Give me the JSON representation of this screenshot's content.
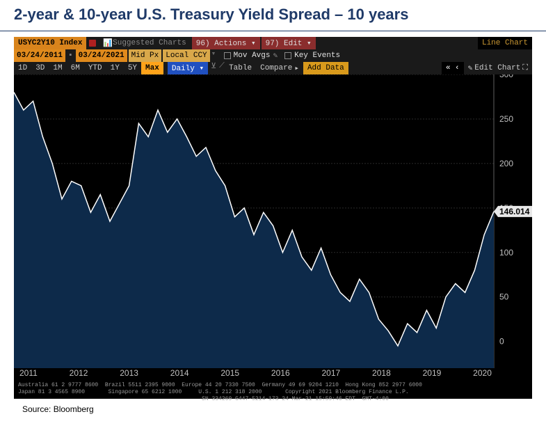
{
  "page": {
    "title": "2-year & 10-year U.S. Treasury Yield Spread – 10 years",
    "source": "Source: Bloomberg"
  },
  "toolbar": {
    "index_name": "USYC2Y10 Index",
    "suggested_charts": "Suggested Charts",
    "actions": "96) Actions ▾",
    "edit": "97) Edit ▾",
    "chart_type": "Line Chart"
  },
  "settings": {
    "date_from": "03/24/2011",
    "date_to": "03/24/2021",
    "mid_px": "Mid Px",
    "local_ccy": "Local CCY",
    "mov_avgs": "Mov Avgs",
    "key_events": "Key Events"
  },
  "ranges": {
    "items": [
      "1D",
      "3D",
      "1M",
      "6M",
      "YTD",
      "1Y",
      "5Y",
      "Max"
    ],
    "active": "Max",
    "frequency": "Daily ▾",
    "table": "Table",
    "compare": "Compare",
    "add_data": "Add Data",
    "edit_chart": "Edit Chart",
    "chevrons": "« ‹"
  },
  "chart": {
    "type": "area-line",
    "background_color": "#000000",
    "area_fill": "#0d2a4a",
    "line_color": "#ffffff",
    "line_width": 1.5,
    "grid_color": "#2a2a2a",
    "axis_text_color": "#c0c0c0",
    "ylim": [
      -30,
      300
    ],
    "ytick_step": 50,
    "yticks": [
      0,
      50,
      100,
      150,
      200,
      250,
      300
    ],
    "xticks": [
      "2011",
      "2012",
      "2013",
      "2014",
      "2015",
      "2016",
      "2017",
      "2018",
      "2019",
      "2020"
    ],
    "last_value": 146.014,
    "last_value_flag_bg": "#e8e8e8",
    "last_value_flag_fg": "#000000",
    "series": [
      [
        0.0,
        280
      ],
      [
        0.02,
        260
      ],
      [
        0.04,
        270
      ],
      [
        0.06,
        230
      ],
      [
        0.08,
        200
      ],
      [
        0.1,
        160
      ],
      [
        0.12,
        180
      ],
      [
        0.14,
        175
      ],
      [
        0.16,
        145
      ],
      [
        0.18,
        165
      ],
      [
        0.2,
        135
      ],
      [
        0.22,
        155
      ],
      [
        0.24,
        175
      ],
      [
        0.26,
        245
      ],
      [
        0.28,
        230
      ],
      [
        0.3,
        260
      ],
      [
        0.32,
        235
      ],
      [
        0.34,
        250
      ],
      [
        0.36,
        230
      ],
      [
        0.38,
        208
      ],
      [
        0.4,
        218
      ],
      [
        0.42,
        192
      ],
      [
        0.44,
        175
      ],
      [
        0.46,
        140
      ],
      [
        0.48,
        150
      ],
      [
        0.5,
        120
      ],
      [
        0.52,
        145
      ],
      [
        0.54,
        130
      ],
      [
        0.56,
        100
      ],
      [
        0.58,
        125
      ],
      [
        0.6,
        95
      ],
      [
        0.62,
        80
      ],
      [
        0.64,
        105
      ],
      [
        0.66,
        75
      ],
      [
        0.68,
        55
      ],
      [
        0.7,
        45
      ],
      [
        0.72,
        70
      ],
      [
        0.74,
        55
      ],
      [
        0.76,
        25
      ],
      [
        0.78,
        12
      ],
      [
        0.8,
        -5
      ],
      [
        0.82,
        20
      ],
      [
        0.84,
        10
      ],
      [
        0.86,
        35
      ],
      [
        0.88,
        15
      ],
      [
        0.9,
        50
      ],
      [
        0.92,
        65
      ],
      [
        0.94,
        55
      ],
      [
        0.96,
        80
      ],
      [
        0.98,
        120
      ],
      [
        1.0,
        146.014
      ]
    ]
  },
  "footer": {
    "line1": "Australia 61 2 9777 8600  Brazil 5511 2395 9000  Europe 44 20 7330 7500  Germany 49 69 9204 1210  Hong Kong 852 2977 6000",
    "line2": "Japan 81 3 4565 8900       Singapore 65 6212 1000     U.S. 1 212 318 2000       Copyright 2021 Bloomberg Finance L.P.",
    "line3": "                                                       SN 334269 G447-5214-173 24-Mar-21 15:59:46 EDT  GMT-4:00"
  }
}
